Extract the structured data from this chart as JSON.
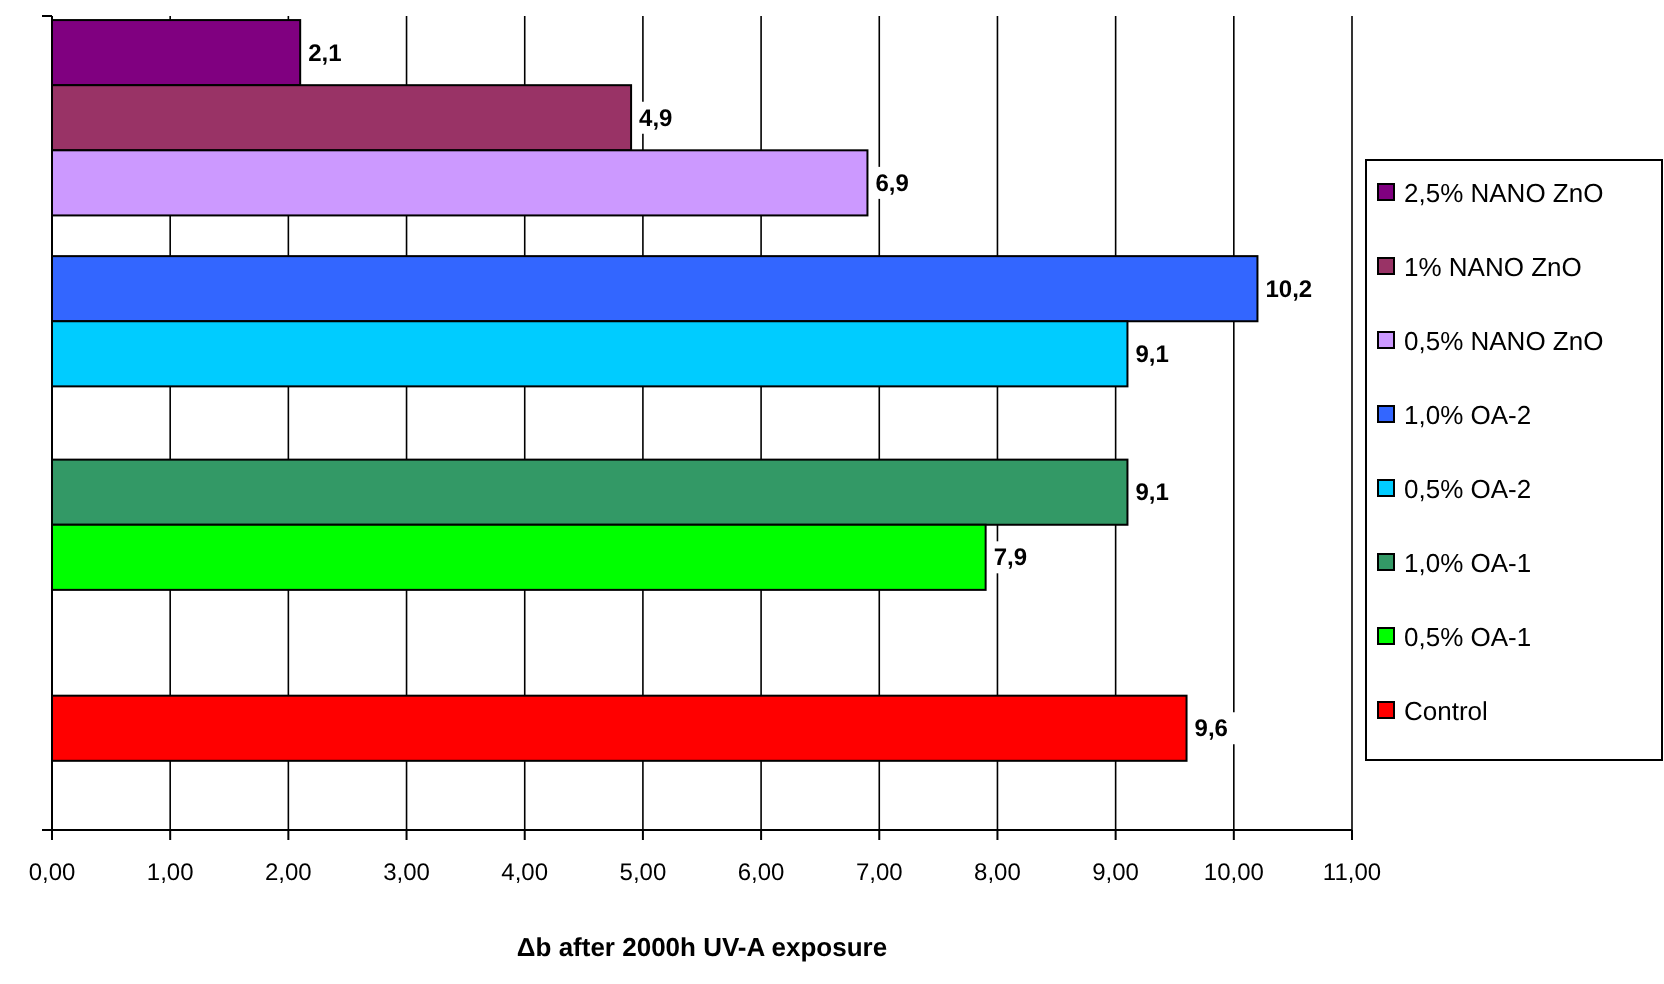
{
  "chart_data": {
    "type": "bar",
    "orientation": "horizontal",
    "xlabel": "Δb after 2000h UV-A exposure",
    "categories": [
      null,
      null,
      null,
      null
    ],
    "xlim": [
      0,
      11
    ],
    "xticks": [
      {
        "value": 0,
        "label": "0,00"
      },
      {
        "value": 1,
        "label": "1,00"
      },
      {
        "value": 2,
        "label": "2,00"
      },
      {
        "value": 3,
        "label": "3,00"
      },
      {
        "value": 4,
        "label": "4,00"
      },
      {
        "value": 5,
        "label": "5,00"
      },
      {
        "value": 6,
        "label": "6,00"
      },
      {
        "value": 7,
        "label": "7,00"
      },
      {
        "value": 8,
        "label": "8,00"
      },
      {
        "value": 9,
        "label": "9,00"
      },
      {
        "value": 10,
        "label": "10,00"
      },
      {
        "value": 11,
        "label": "11,00"
      }
    ],
    "grid": "x",
    "legend": "right",
    "series": [
      {
        "name": "2,5% NANO ZnO",
        "color": "#800080",
        "values": [
          2.1,
          null,
          null,
          null
        ],
        "value_labels": [
          "2,1",
          null,
          null,
          null
        ]
      },
      {
        "name": "1% NANO ZnO",
        "color": "#993366",
        "values": [
          4.9,
          null,
          null,
          null
        ],
        "value_labels": [
          "4,9",
          null,
          null,
          null
        ]
      },
      {
        "name": "0,5% NANO ZnO",
        "color": "#cc99ff",
        "values": [
          6.9,
          null,
          null,
          null
        ],
        "value_labels": [
          "6,9",
          null,
          null,
          null
        ]
      },
      {
        "name": "1,0% OA-2",
        "color": "#3366ff",
        "values": [
          null,
          10.2,
          null,
          null
        ],
        "value_labels": [
          null,
          "10,2",
          null,
          null
        ]
      },
      {
        "name": "0,5% OA-2",
        "color": "#00ccff",
        "values": [
          null,
          9.1,
          null,
          null
        ],
        "value_labels": [
          null,
          "9,1",
          null,
          null
        ]
      },
      {
        "name": "1,0% OA-1",
        "color": "#339966",
        "values": [
          null,
          null,
          9.1,
          null
        ],
        "value_labels": [
          null,
          null,
          "9,1",
          null
        ]
      },
      {
        "name": "0,5% OA-1",
        "color": "#00ff00",
        "values": [
          null,
          null,
          7.9,
          null
        ],
        "value_labels": [
          null,
          null,
          "7,9",
          null
        ]
      },
      {
        "name": "Control",
        "color": "#ff0000",
        "values": [
          null,
          null,
          null,
          9.6
        ],
        "value_labels": [
          null,
          null,
          null,
          "9,6"
        ]
      }
    ]
  }
}
